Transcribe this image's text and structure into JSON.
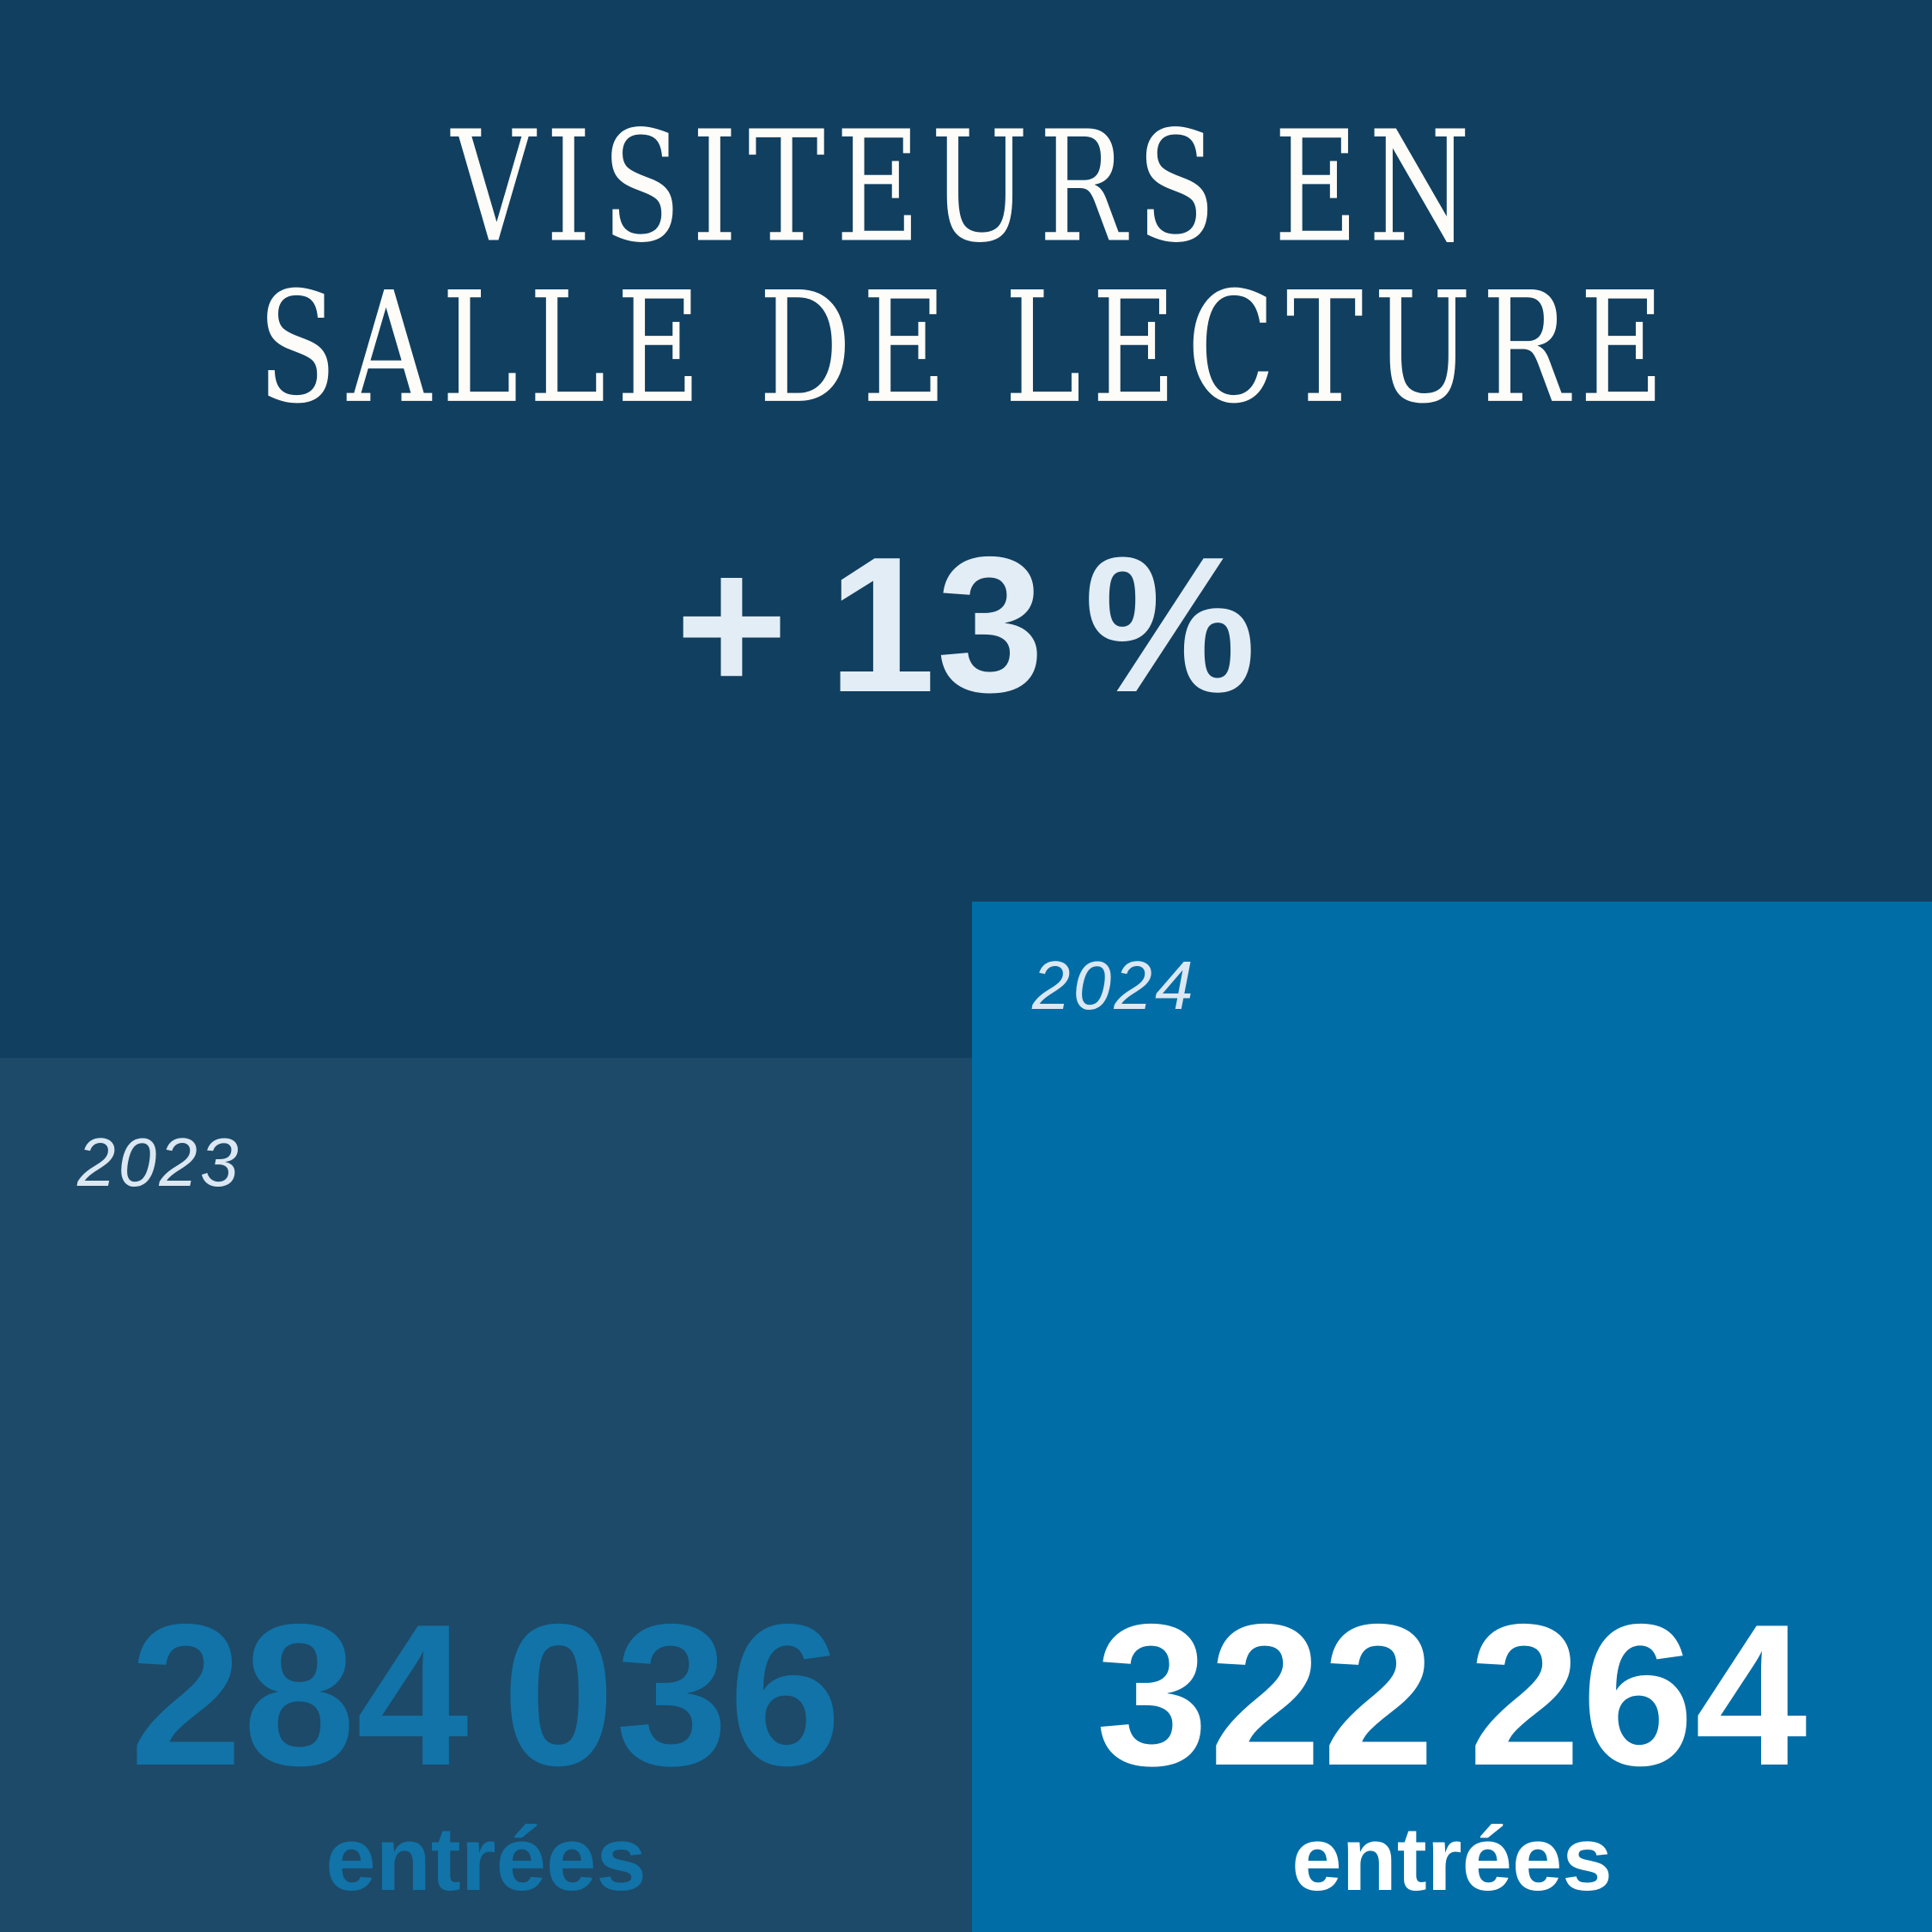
{
  "title": {
    "line1": "VISITEURS EN",
    "line2": "SALLE DE LECTURE"
  },
  "delta": "+ 13 %",
  "blocks": [
    {
      "year": "2023",
      "value": "284 036",
      "unit": "entrées"
    },
    {
      "year": "2024",
      "value": "322 264",
      "unit": "entrées"
    }
  ],
  "chart_data": {
    "type": "bar",
    "title": "Visiteurs en salle de lecture",
    "categories": [
      "2023",
      "2024"
    ],
    "values": [
      284036,
      322264
    ],
    "value_labels": [
      "284 036 entrées",
      "322 264 entrées"
    ],
    "annotations": [
      "+ 13 %"
    ],
    "ylabel": "entrées",
    "legend_position": "none",
    "grid": false
  },
  "colors": {
    "bg": "#113f60",
    "block-2023": "#1d4a68",
    "block-2024": "#006da6",
    "accent-2023": "#1173a8",
    "light": "#e3edf6",
    "title": "#fdfcf8",
    "label": "#dbe7f2",
    "white": "#ffffff"
  }
}
